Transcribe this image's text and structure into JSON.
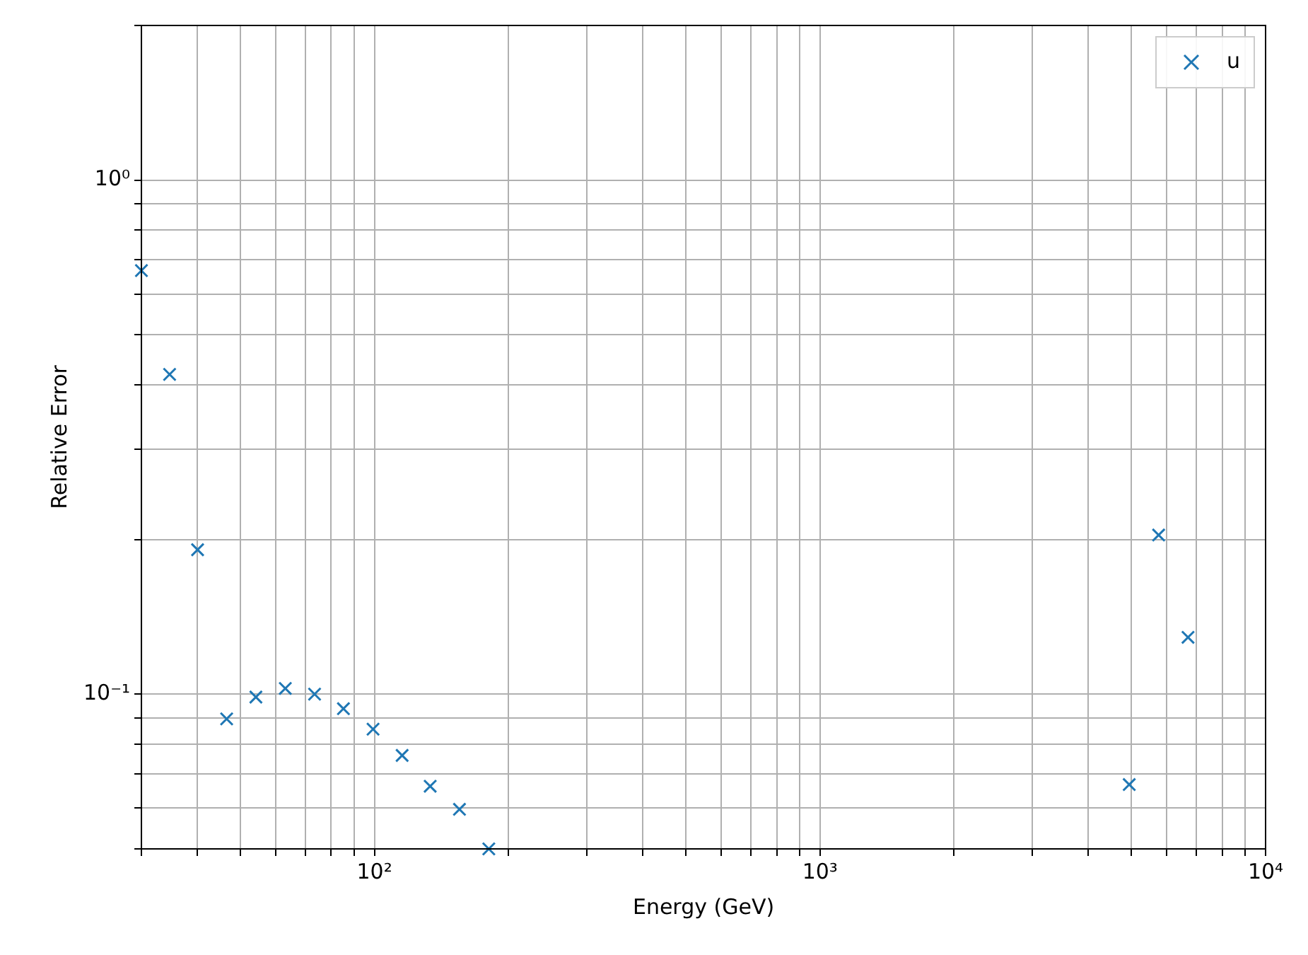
{
  "chart_data": {
    "type": "scatter",
    "xlabel": "Energy (GeV)",
    "ylabel": "Relative Error",
    "log": "xy",
    "grid": true,
    "legend": "top right",
    "marker": "cross",
    "xlim": [
      30,
      10000
    ],
    "ylim": [
      0.05,
      2
    ],
    "xticks": [
      {
        "value": 30,
        "label": null
      },
      {
        "value": 40,
        "label": null
      },
      {
        "value": 50,
        "label": null
      },
      {
        "value": 60,
        "label": null
      },
      {
        "value": 70,
        "label": null
      },
      {
        "value": 80,
        "label": null
      },
      {
        "value": 90,
        "label": null
      },
      {
        "value": 100,
        "label": "10²"
      },
      {
        "value": 200,
        "label": null
      },
      {
        "value": 300,
        "label": null
      },
      {
        "value": 400,
        "label": null
      },
      {
        "value": 500,
        "label": null
      },
      {
        "value": 600,
        "label": null
      },
      {
        "value": 700,
        "label": null
      },
      {
        "value": 800,
        "label": null
      },
      {
        "value": 900,
        "label": null
      },
      {
        "value": 1000,
        "label": "10³"
      },
      {
        "value": 2000,
        "label": null
      },
      {
        "value": 3000,
        "label": null
      },
      {
        "value": 4000,
        "label": null
      },
      {
        "value": 5000,
        "label": null
      },
      {
        "value": 6000,
        "label": null
      },
      {
        "value": 7000,
        "label": null
      },
      {
        "value": 8000,
        "label": null
      },
      {
        "value": 9000,
        "label": null
      },
      {
        "value": 10000,
        "label": "10⁴"
      }
    ],
    "yticks": [
      {
        "value": 0.05,
        "label": null
      },
      {
        "value": 0.06,
        "label": null
      },
      {
        "value": 0.07,
        "label": null
      },
      {
        "value": 0.08,
        "label": null
      },
      {
        "value": 0.09,
        "label": null
      },
      {
        "value": 0.1,
        "label": "10⁻¹"
      },
      {
        "value": 0.2,
        "label": null
      },
      {
        "value": 0.3,
        "label": null
      },
      {
        "value": 0.4,
        "label": null
      },
      {
        "value": 0.5,
        "label": null
      },
      {
        "value": 0.6,
        "label": null
      },
      {
        "value": 0.7,
        "label": null
      },
      {
        "value": 0.8,
        "label": null
      },
      {
        "value": 0.9,
        "label": null
      },
      {
        "value": 1,
        "label": "10⁰"
      },
      {
        "value": 2,
        "label": null
      }
    ],
    "series": [
      {
        "name": "u",
        "color": "#1f77b4",
        "x": [
          30,
          34.7,
          40.1,
          46.6,
          54.2,
          63.1,
          73.4,
          85.2,
          99.3,
          115.4,
          133.4,
          155.2,
          180.6,
          4943,
          5754,
          6698
        ],
        "values": [
          0.667,
          0.419,
          0.191,
          0.0895,
          0.0987,
          0.1026,
          0.1,
          0.0937,
          0.0855,
          0.076,
          0.0662,
          0.0597,
          0.05,
          0.0667,
          0.204,
          0.129
        ]
      }
    ]
  }
}
